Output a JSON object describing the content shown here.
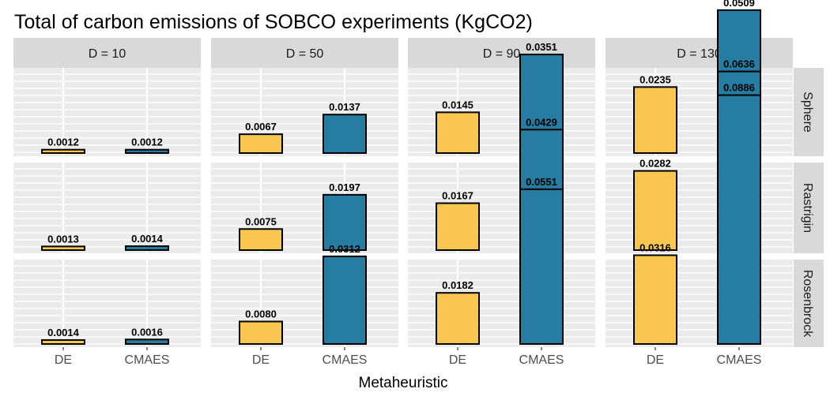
{
  "chart_data": {
    "type": "bar",
    "title": "Total of carbon emissions of SOBCO experiments (KgCO2)",
    "xlabel": "Metaheuristic",
    "ylabel": "",
    "categories": [
      "DE",
      "CMAES"
    ],
    "columns": [
      "D = 10",
      "D = 50",
      "D = 90",
      "D = 130"
    ],
    "rows": [
      "Sphere",
      "Rastrigin",
      "Rosenbrock"
    ],
    "ylim": [
      0,
      0.0975
    ],
    "grid": true,
    "legend": "none",
    "colors": {
      "DE": "#f9c74f",
      "CMAES": "#277da1",
      "outline": "#000000",
      "panel": "#ebebeb",
      "strip": "#d9d9d9",
      "grid": "#ffffff"
    },
    "panels": [
      {
        "row": "Sphere",
        "column": "D = 10",
        "values": [
          0.0012,
          0.0012
        ],
        "labels": [
          "0.0012",
          "0.0012"
        ]
      },
      {
        "row": "Sphere",
        "column": "D = 50",
        "values": [
          0.0067,
          0.0137
        ],
        "labels": [
          "0.0067",
          "0.0137"
        ]
      },
      {
        "row": "Sphere",
        "column": "D = 90",
        "values": [
          0.0145,
          0.0351
        ],
        "labels": [
          "0.0145",
          "0.0351"
        ]
      },
      {
        "row": "Sphere",
        "column": "D = 130",
        "values": [
          0.0235,
          0.0509
        ],
        "labels": [
          "0.0235",
          "0.0509"
        ]
      },
      {
        "row": "Rastrigin",
        "column": "D = 10",
        "values": [
          0.0013,
          0.0014
        ],
        "labels": [
          "0.0013",
          "0.0014"
        ]
      },
      {
        "row": "Rastrigin",
        "column": "D = 50",
        "values": [
          0.0075,
          0.0197
        ],
        "labels": [
          "0.0075",
          "0.0197"
        ]
      },
      {
        "row": "Rastrigin",
        "column": "D = 90",
        "values": [
          0.0167,
          0.0429
        ],
        "labels": [
          "0.0167",
          "0.0429"
        ]
      },
      {
        "row": "Rastrigin",
        "column": "D = 130",
        "values": [
          0.0282,
          0.0636
        ],
        "labels": [
          "0.0282",
          "0.0636"
        ]
      },
      {
        "row": "Rosenbrock",
        "column": "D = 10",
        "values": [
          0.0014,
          0.0016
        ],
        "labels": [
          "0.0014",
          "0.0016"
        ]
      },
      {
        "row": "Rosenbrock",
        "column": "D = 50",
        "values": [
          0.008,
          0.0312
        ],
        "labels": [
          "0.0080",
          "0.0312"
        ]
      },
      {
        "row": "Rosenbrock",
        "column": "D = 90",
        "values": [
          0.0182,
          0.0551
        ],
        "labels": [
          "0.0182",
          "0.0551"
        ]
      },
      {
        "row": "Rosenbrock",
        "column": "D = 130",
        "values": [
          0.0316,
          0.0886
        ],
        "labels": [
          "0.0316",
          "0.0886"
        ]
      }
    ]
  }
}
